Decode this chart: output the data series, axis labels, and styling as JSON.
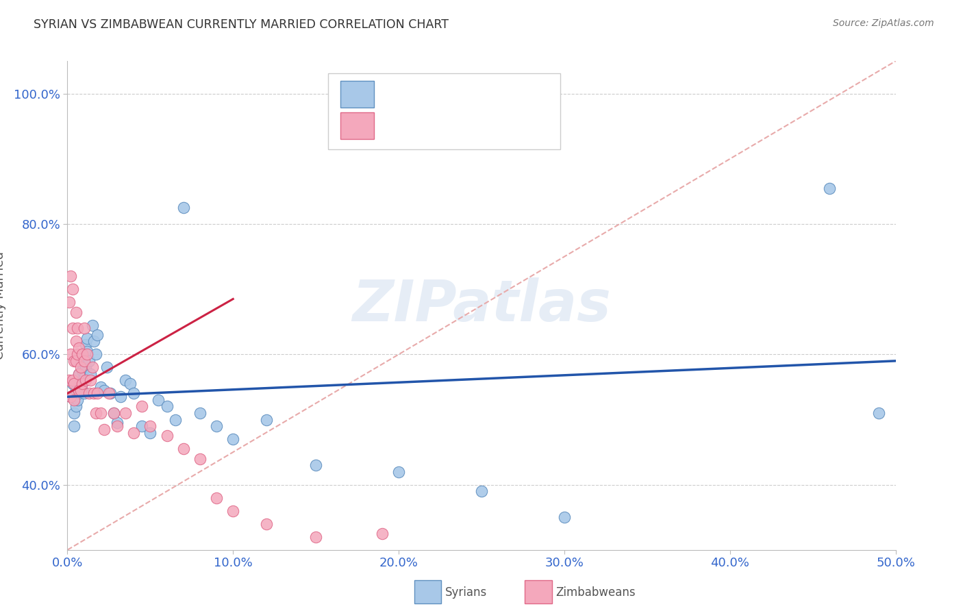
{
  "title": "SYRIAN VS ZIMBABWEAN CURRENTLY MARRIED CORRELATION CHART",
  "source": "Source: ZipAtlas.com",
  "ylabel_label": "Currently Married",
  "xlim": [
    0.0,
    0.5
  ],
  "ylim": [
    0.3,
    1.05
  ],
  "x_ticks": [
    0.0,
    0.1,
    0.2,
    0.3,
    0.4,
    0.5
  ],
  "x_ticklabels": [
    "0.0%",
    "10.0%",
    "20.0%",
    "30.0%",
    "40.0%",
    "50.0%"
  ],
  "y_ticks": [
    0.4,
    0.6,
    0.8,
    1.0
  ],
  "y_ticklabels": [
    "40.0%",
    "60.0%",
    "80.0%",
    "100.0%"
  ],
  "syrian_color": "#A8C8E8",
  "zimbabwean_color": "#F4A8BC",
  "syrian_edge": "#6090C0",
  "zimbabwean_edge": "#E06888",
  "trend_syrian_color": "#2255AA",
  "trend_zimbabwean_color": "#CC2244",
  "diagonal_color": "#E8AAAA",
  "watermark": "ZIPatlas",
  "syrian_x": [
    0.002,
    0.003,
    0.004,
    0.004,
    0.005,
    0.005,
    0.006,
    0.006,
    0.007,
    0.007,
    0.008,
    0.008,
    0.009,
    0.009,
    0.01,
    0.01,
    0.01,
    0.011,
    0.011,
    0.012,
    0.012,
    0.013,
    0.014,
    0.015,
    0.016,
    0.017,
    0.018,
    0.02,
    0.022,
    0.024,
    0.026,
    0.028,
    0.03,
    0.032,
    0.035,
    0.038,
    0.04,
    0.045,
    0.05,
    0.055,
    0.06,
    0.065,
    0.07,
    0.08,
    0.09,
    0.1,
    0.12,
    0.15,
    0.2,
    0.25,
    0.3,
    0.46,
    0.49
  ],
  "syrian_y": [
    0.535,
    0.555,
    0.51,
    0.49,
    0.545,
    0.52,
    0.56,
    0.53,
    0.57,
    0.54,
    0.59,
    0.555,
    0.575,
    0.545,
    0.59,
    0.565,
    0.54,
    0.615,
    0.58,
    0.625,
    0.605,
    0.59,
    0.57,
    0.645,
    0.62,
    0.6,
    0.63,
    0.55,
    0.545,
    0.58,
    0.54,
    0.51,
    0.495,
    0.535,
    0.56,
    0.555,
    0.54,
    0.49,
    0.48,
    0.53,
    0.52,
    0.5,
    0.825,
    0.51,
    0.49,
    0.47,
    0.5,
    0.43,
    0.42,
    0.39,
    0.35,
    0.855,
    0.51
  ],
  "zimbabwean_x": [
    0.001,
    0.001,
    0.002,
    0.002,
    0.002,
    0.003,
    0.003,
    0.003,
    0.004,
    0.004,
    0.004,
    0.005,
    0.005,
    0.005,
    0.006,
    0.006,
    0.007,
    0.007,
    0.007,
    0.008,
    0.008,
    0.009,
    0.009,
    0.01,
    0.01,
    0.011,
    0.012,
    0.013,
    0.014,
    0.015,
    0.016,
    0.017,
    0.018,
    0.02,
    0.022,
    0.025,
    0.028,
    0.03,
    0.035,
    0.04,
    0.045,
    0.05,
    0.06,
    0.07,
    0.08,
    0.09,
    0.1,
    0.12,
    0.15,
    0.19
  ],
  "zimbabwean_y": [
    0.68,
    0.56,
    0.72,
    0.6,
    0.535,
    0.56,
    0.7,
    0.64,
    0.59,
    0.555,
    0.53,
    0.665,
    0.62,
    0.59,
    0.64,
    0.6,
    0.57,
    0.545,
    0.61,
    0.58,
    0.545,
    0.6,
    0.555,
    0.64,
    0.59,
    0.56,
    0.6,
    0.54,
    0.56,
    0.58,
    0.54,
    0.51,
    0.54,
    0.51,
    0.485,
    0.54,
    0.51,
    0.49,
    0.51,
    0.48,
    0.52,
    0.49,
    0.475,
    0.455,
    0.44,
    0.38,
    0.36,
    0.34,
    0.32,
    0.325
  ]
}
